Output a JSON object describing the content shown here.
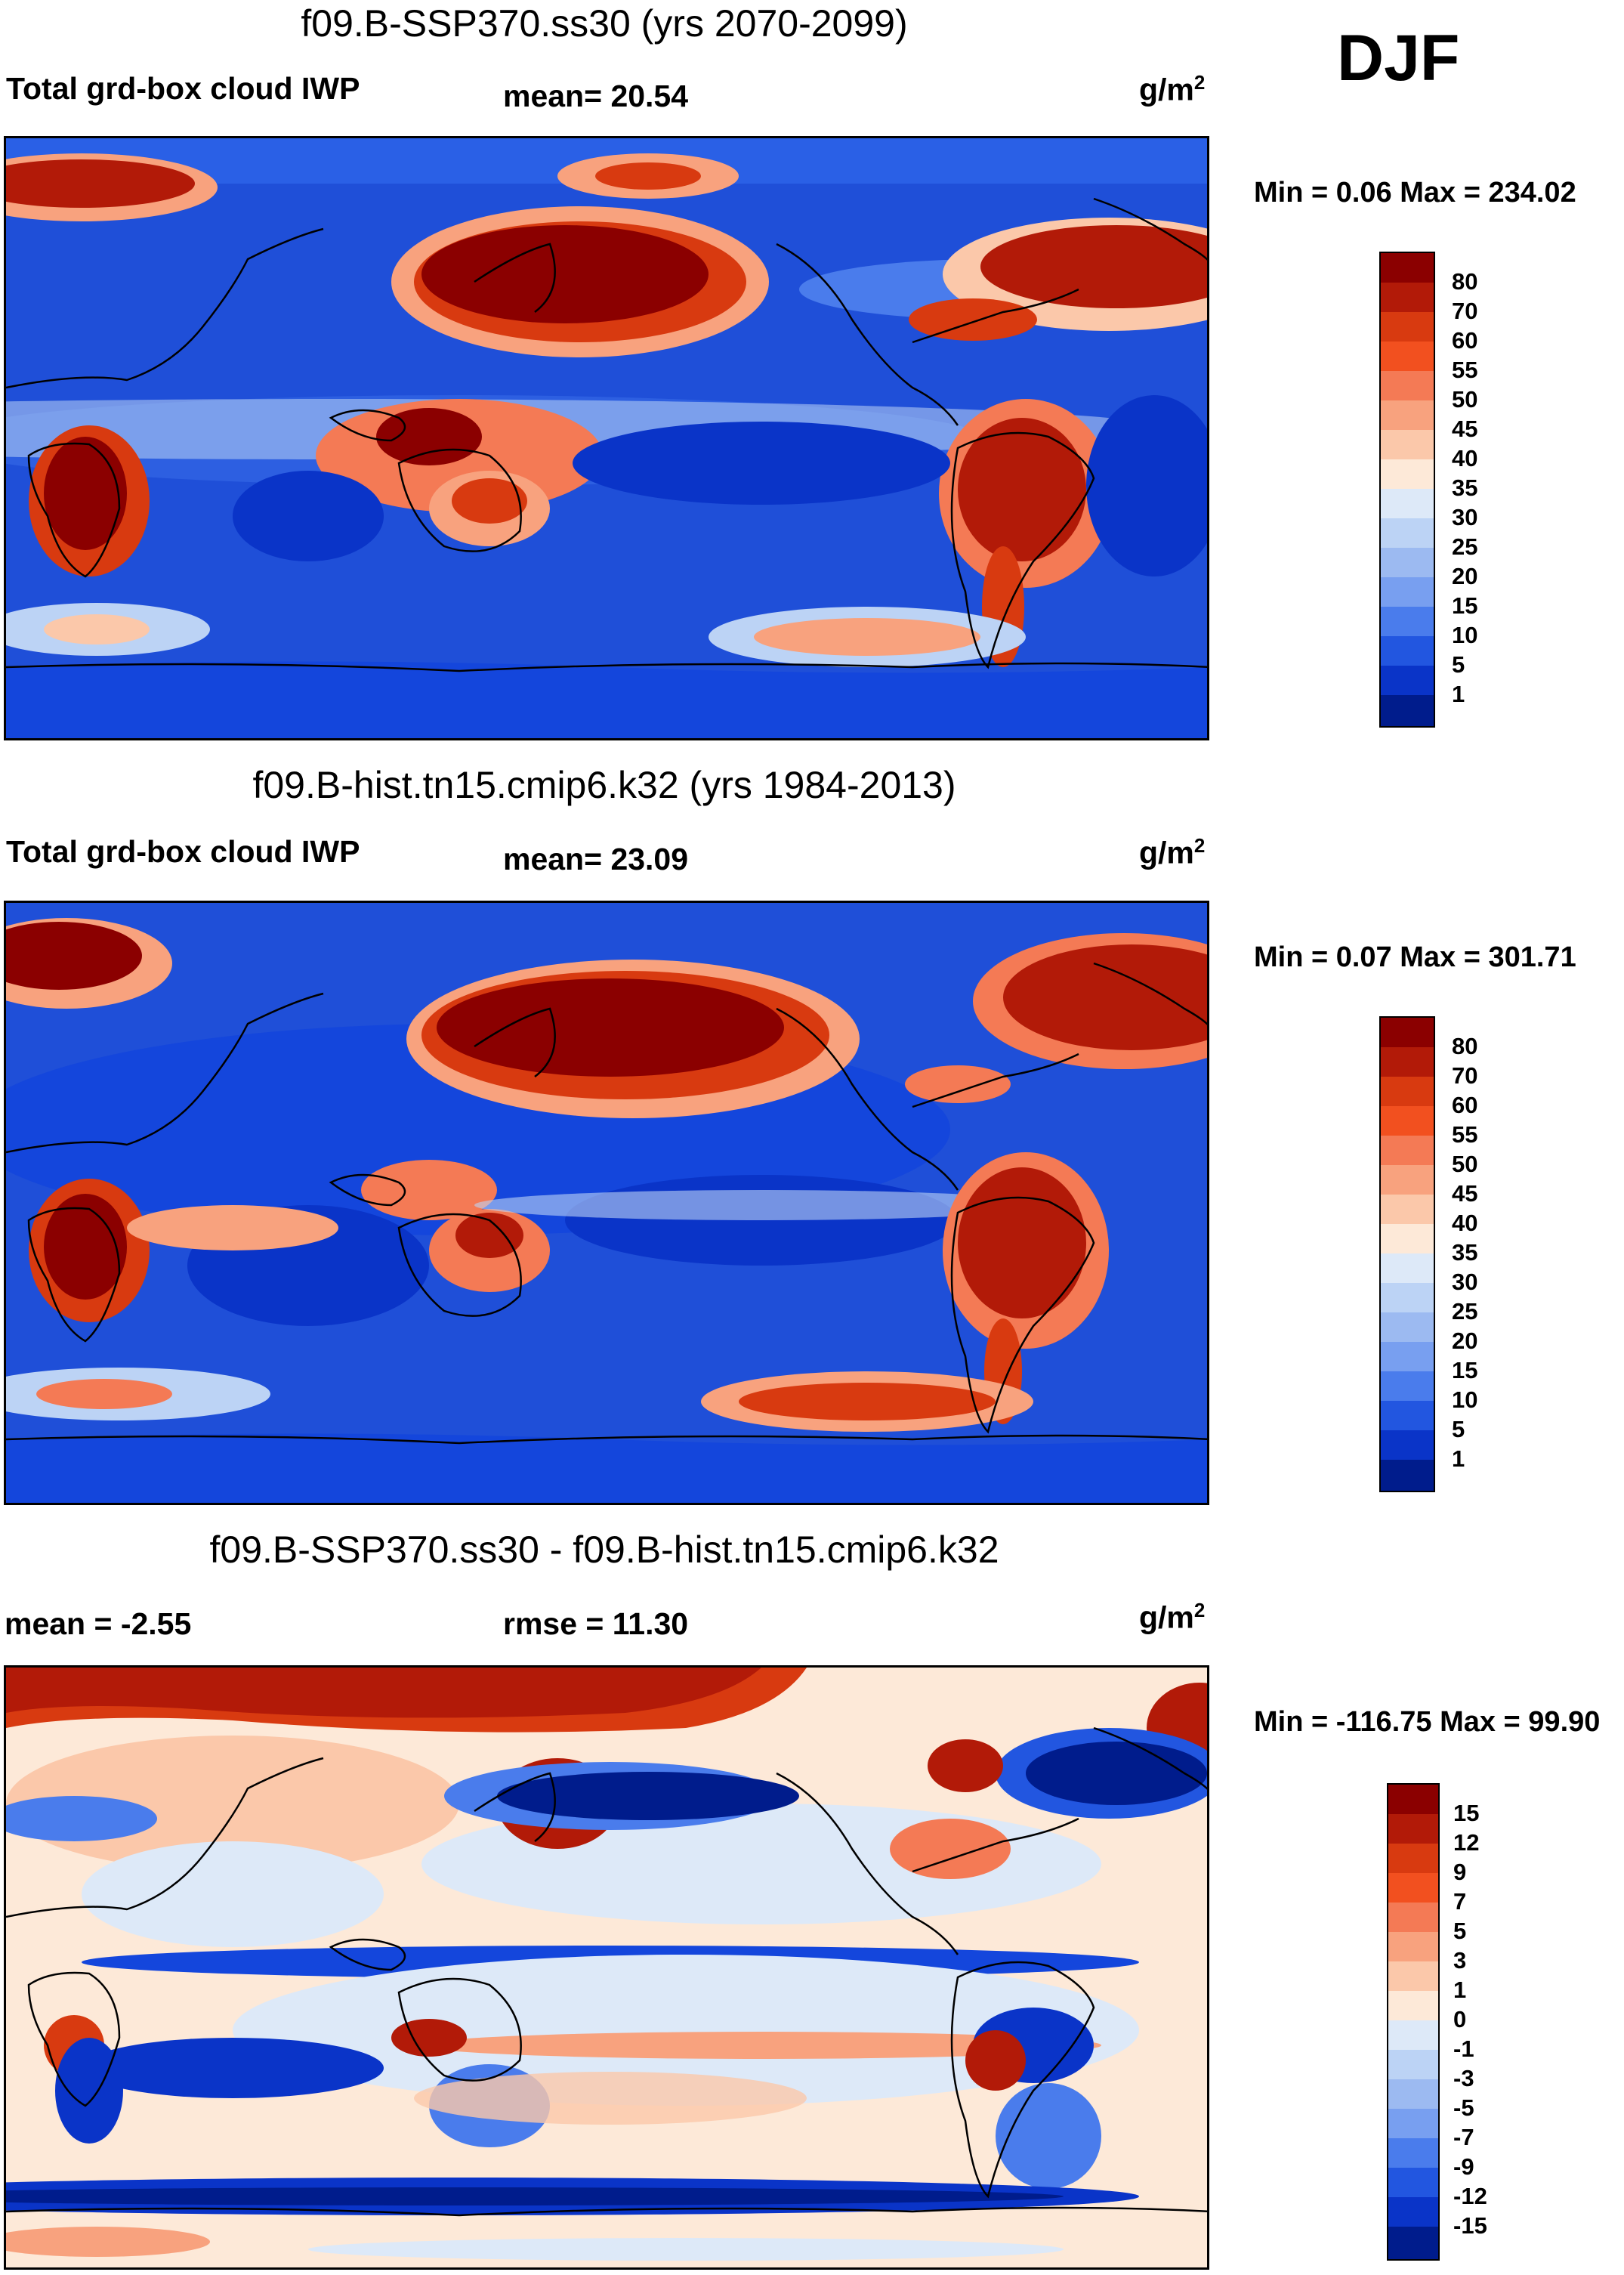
{
  "season": "DJF",
  "units": {
    "base": "g/m",
    "exp": "2"
  },
  "panels": [
    {
      "title": "f09.B-SSP370.ss30 (yrs 2070-2099)",
      "variable": "Total grd-box cloud IWP",
      "stat1": "mean=  20.54",
      "minmax": "Min =   0.06 Max = 234.02",
      "colorbar": {
        "labels": [
          "80",
          "70",
          "60",
          "55",
          "50",
          "45",
          "40",
          "35",
          "30",
          "25",
          "20",
          "15",
          "10",
          "5",
          "1"
        ],
        "colors": [
          "#8b0000",
          "#b21a08",
          "#d83a10",
          "#f2501f",
          "#f47a55",
          "#f8a27e",
          "#fbc8aa",
          "#fde9d8",
          "#dde9f8",
          "#bcd3f5",
          "#9cbaf1",
          "#789ff0",
          "#4a7cec",
          "#2256e0",
          "#0a34c8",
          "#001c8c"
        ]
      }
    },
    {
      "title": "f09.B-hist.tn15.cmip6.k32 (yrs 1984-2013)",
      "variable": "Total grd-box cloud IWP",
      "stat1": "mean=  23.09",
      "minmax": "Min =   0.07 Max = 301.71",
      "colorbar": {
        "labels": [
          "80",
          "70",
          "60",
          "55",
          "50",
          "45",
          "40",
          "35",
          "30",
          "25",
          "20",
          "15",
          "10",
          "5",
          "1"
        ],
        "colors": [
          "#8b0000",
          "#b21a08",
          "#d83a10",
          "#f2501f",
          "#f47a55",
          "#f8a27e",
          "#fbc8aa",
          "#fde9d8",
          "#dde9f8",
          "#bcd3f5",
          "#9cbaf1",
          "#789ff0",
          "#4a7cec",
          "#2256e0",
          "#0a34c8",
          "#001c8c"
        ]
      }
    },
    {
      "title": "f09.B-SSP370.ss30 - f09.B-hist.tn15.cmip6.k32",
      "stat0": "mean =  -2.55",
      "stat1": "rmse =  11.30",
      "minmax": "Min = -116.75 Max =  99.90",
      "colorbar": {
        "labels": [
          "15",
          "12",
          "9",
          "7",
          "5",
          "3",
          "1",
          "0",
          "-1",
          "-3",
          "-5",
          "-7",
          "-9",
          "-12",
          "-15"
        ],
        "colors": [
          "#8b0000",
          "#b21a08",
          "#d83a10",
          "#f2501f",
          "#f47a55",
          "#f8a27e",
          "#fbc8aa",
          "#fde9d8",
          "#dde9f8",
          "#bcd3f5",
          "#9cbaf1",
          "#789ff0",
          "#4a7cec",
          "#2256e0",
          "#0a34c8",
          "#001c8c"
        ]
      }
    }
  ],
  "palette": {
    "ocean_low": "#0a34c8",
    "ocean_mid": "#2256e0",
    "high": "#8b0000",
    "red": "#d83a10",
    "light_red": "#fbc8aa",
    "light_blue": "#bcd3f5",
    "deep_blue": "#001c8c"
  }
}
